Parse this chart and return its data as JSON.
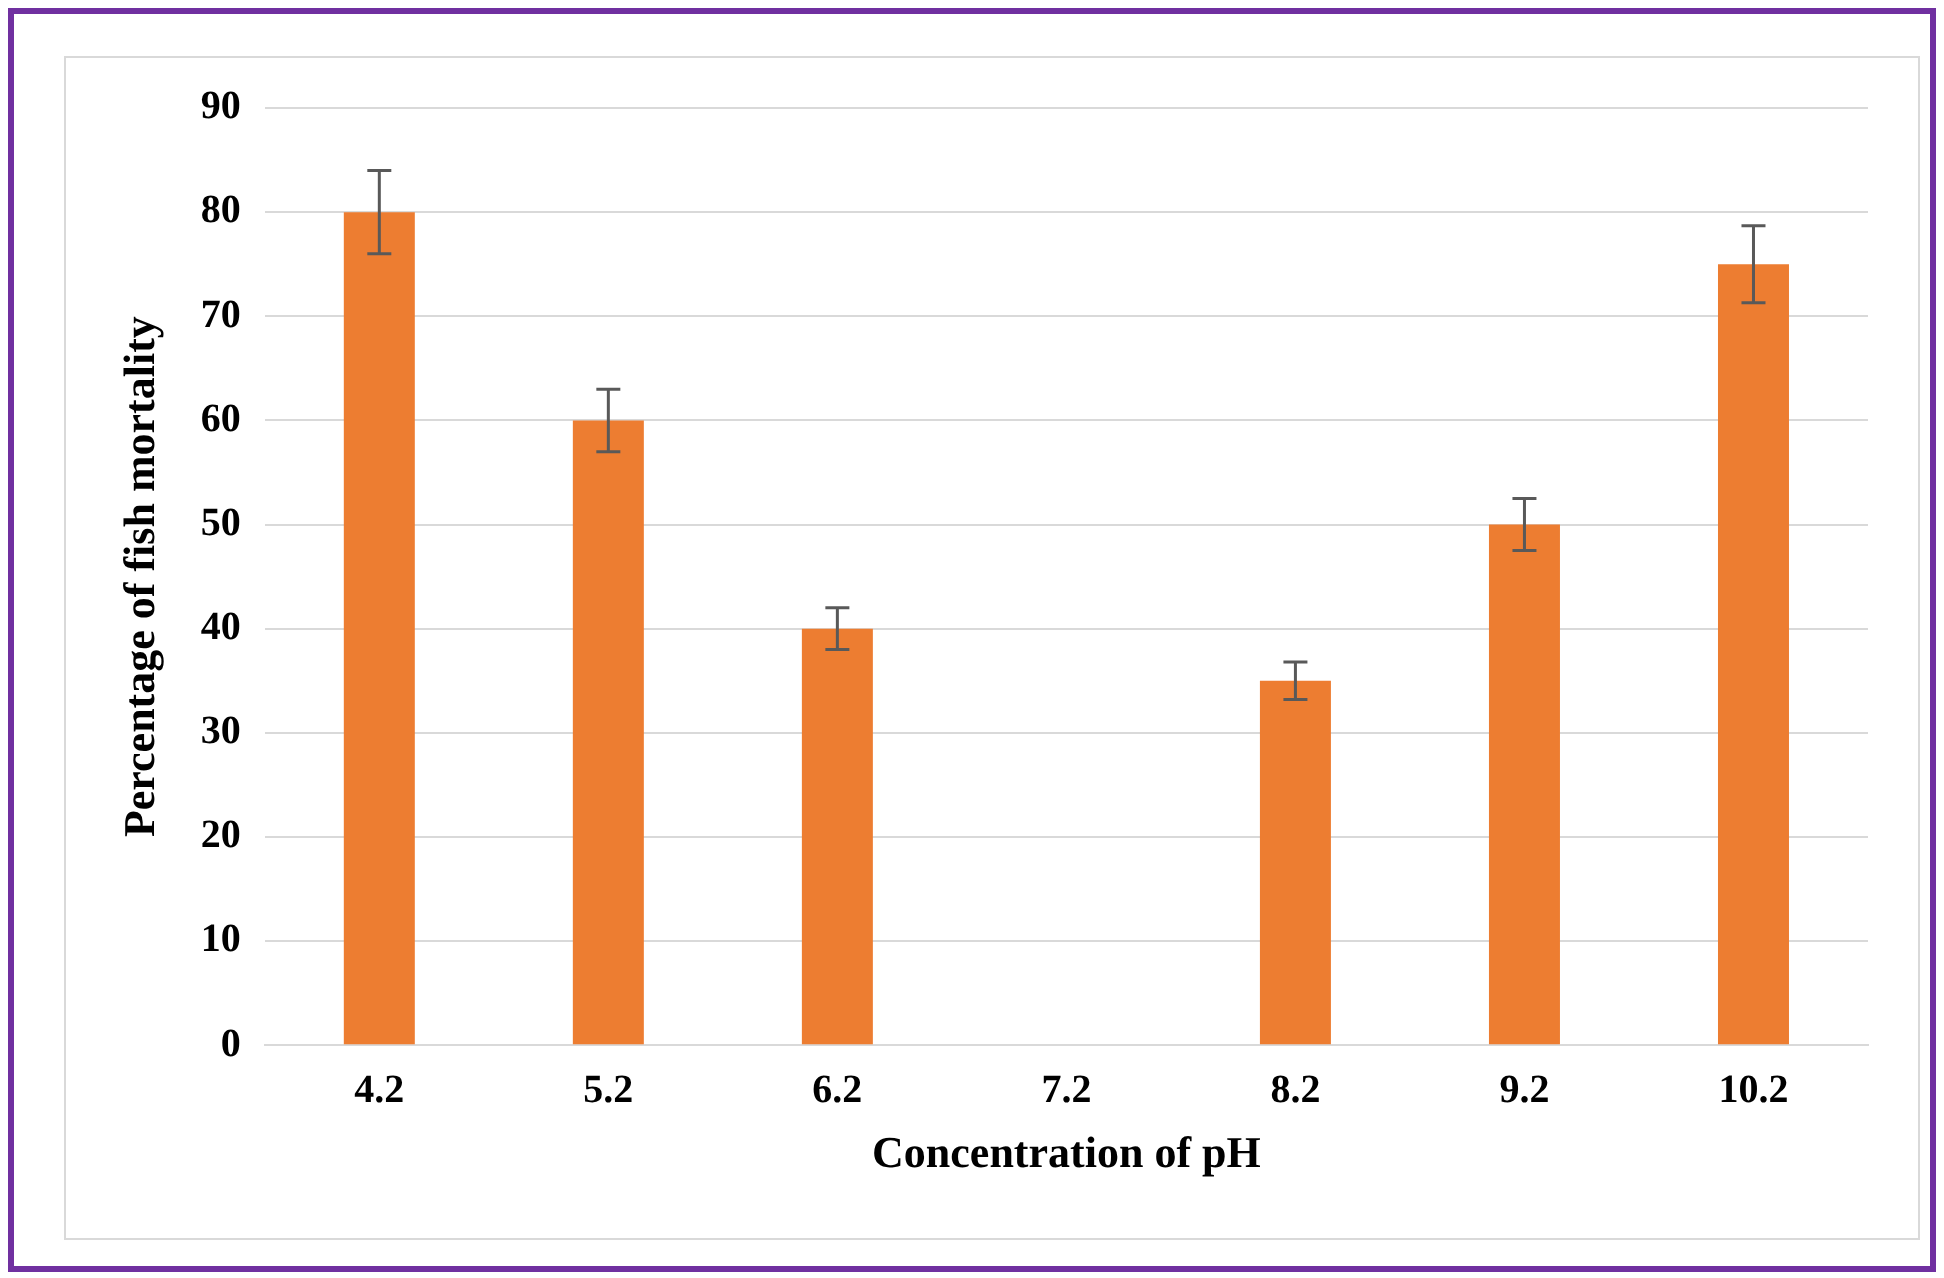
{
  "chart_data": {
    "type": "bar",
    "xlabel": "Concentration of pH",
    "ylabel": "Percentage of fish mortality",
    "categories": [
      "4.2",
      "5.2",
      "6.2",
      "7.2",
      "8.2",
      "9.2",
      "10.2"
    ],
    "values": [
      80,
      60,
      40,
      0,
      35,
      50,
      75
    ],
    "errors": [
      4,
      3,
      2,
      null,
      1.8,
      2.5,
      3.7
    ],
    "color": "#ed7d31",
    "ylim": [
      0,
      90
    ],
    "yticks": [
      0,
      10,
      20,
      30,
      40,
      50,
      60,
      70,
      80,
      90
    ],
    "grid": "y",
    "legend": false
  }
}
